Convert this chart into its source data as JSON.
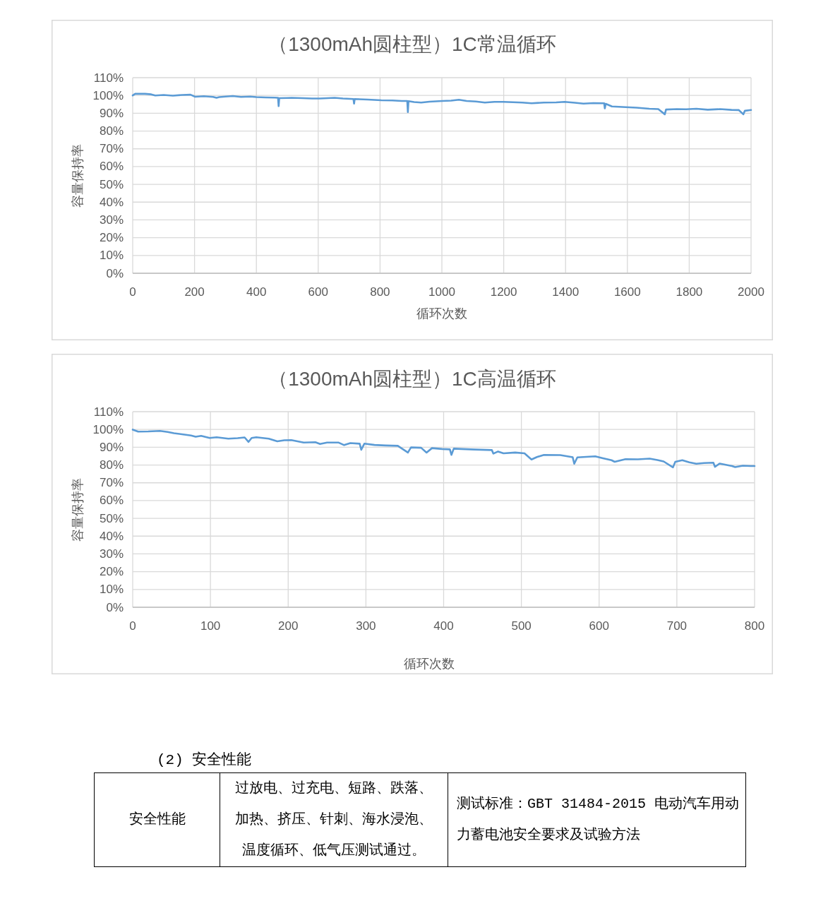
{
  "chart_data": [
    {
      "type": "line",
      "title": "（1300mAh圆柱型）1C常温循环",
      "xlabel": "循环次数",
      "ylabel": "容量保持率",
      "grid": true,
      "xlim": [
        0,
        2000
      ],
      "xticks": [
        0,
        200,
        400,
        600,
        800,
        1000,
        1200,
        1400,
        1600,
        1800,
        2000
      ],
      "ylim": [
        0,
        110
      ],
      "yticks": [
        {
          "value": 0,
          "label": "0%"
        },
        {
          "value": 10,
          "label": "10%"
        },
        {
          "value": 20,
          "label": "20%"
        },
        {
          "value": 30,
          "label": "30%"
        },
        {
          "value": 40,
          "label": "40%"
        },
        {
          "value": 50,
          "label": "50%"
        },
        {
          "value": 60,
          "label": "60%"
        },
        {
          "value": 70,
          "label": "70%"
        },
        {
          "value": 80,
          "label": "80%"
        },
        {
          "value": 90,
          "label": "90%"
        },
        {
          "value": 100,
          "label": "100%"
        },
        {
          "value": 110,
          "label": "110%"
        }
      ],
      "x": [
        0,
        8,
        40,
        60,
        73,
        100,
        130,
        160,
        187,
        202,
        230,
        260,
        271,
        280,
        300,
        324,
        350,
        380,
        400,
        430,
        460,
        470,
        472,
        474,
        500,
        514,
        550,
        580,
        605,
        630,
        653,
        680,
        714,
        716,
        718,
        760,
        804,
        840,
        870,
        888,
        890,
        892,
        910,
        933,
        960,
        1001,
        1030,
        1055,
        1080,
        1110,
        1139,
        1170,
        1199,
        1230,
        1260,
        1290,
        1330,
        1370,
        1397,
        1430,
        1458,
        1490,
        1525,
        1527,
        1530,
        1550,
        1595,
        1630,
        1671,
        1700,
        1721,
        1725,
        1760,
        1790,
        1823,
        1860,
        1900,
        1937,
        1960,
        1975,
        1980,
        2000
      ],
      "series": [
        {
          "color": "#5b9bd5",
          "values": [
            100.0,
            100.9,
            100.9,
            100.6,
            100.0,
            100.3,
            99.9,
            100.3,
            100.4,
            99.3,
            99.6,
            99.2,
            98.7,
            99.1,
            99.4,
            99.7,
            99.2,
            99.4,
            99.1,
            98.9,
            98.8,
            98.7,
            94.0,
            98.5,
            98.6,
            98.7,
            98.5,
            98.3,
            98.3,
            98.5,
            98.7,
            98.3,
            98.0,
            95.4,
            98.0,
            97.7,
            97.3,
            97.2,
            96.9,
            96.9,
            90.7,
            96.8,
            96.3,
            96.0,
            96.5,
            96.9,
            97.1,
            97.6,
            96.9,
            96.6,
            96.0,
            96.4,
            96.4,
            96.2,
            96.0,
            95.6,
            96.0,
            96.1,
            96.4,
            95.9,
            95.4,
            95.7,
            95.6,
            92.7,
            95.3,
            93.8,
            93.4,
            93.1,
            92.5,
            92.3,
            89.4,
            92.1,
            92.3,
            92.2,
            92.5,
            92.0,
            92.3,
            91.9,
            91.8,
            89.4,
            91.4,
            91.8
          ]
        }
      ]
    },
    {
      "type": "line",
      "title": "（1300mAh圆柱型）1C高温循环",
      "xlabel": "循环次数",
      "ylabel": "容量保持率",
      "grid": true,
      "xlim": [
        0,
        800
      ],
      "xticks": [
        0,
        100,
        200,
        300,
        400,
        500,
        600,
        700,
        800
      ],
      "ylim": [
        0,
        110
      ],
      "yticks": [
        {
          "value": 0,
          "label": "0%"
        },
        {
          "value": 10,
          "label": "10%"
        },
        {
          "value": 20,
          "label": "20%"
        },
        {
          "value": 30,
          "label": "30%"
        },
        {
          "value": 40,
          "label": "40%"
        },
        {
          "value": 50,
          "label": "50%"
        },
        {
          "value": 60,
          "label": "60%"
        },
        {
          "value": 70,
          "label": "70%"
        },
        {
          "value": 80,
          "label": "80%"
        },
        {
          "value": 90,
          "label": "90%"
        },
        {
          "value": 100,
          "label": "100%"
        },
        {
          "value": 110,
          "label": "110%"
        }
      ],
      "x": [
        0,
        7,
        20,
        35,
        45,
        53,
        65,
        75,
        81,
        88,
        99,
        108,
        123,
        135,
        144,
        149,
        153,
        159,
        175,
        186,
        195,
        204,
        220,
        235,
        241,
        250,
        265,
        272,
        280,
        292,
        294,
        298,
        311,
        325,
        341,
        354,
        358,
        371,
        378,
        385,
        398,
        408,
        410,
        413,
        423,
        440,
        462,
        464,
        470,
        477,
        492,
        504,
        513,
        520,
        529,
        550,
        566,
        568,
        572,
        595,
        605,
        616,
        620,
        634,
        650,
        665,
        675,
        683,
        695,
        698,
        707,
        716,
        725,
        735,
        747,
        749,
        755,
        771,
        775,
        785,
        795,
        800
      ],
      "series": [
        {
          "color": "#5b9bd5",
          "values": [
            99.9,
            98.8,
            98.9,
            99.2,
            98.6,
            97.9,
            97.2,
            96.6,
            95.9,
            96.4,
            95.2,
            95.6,
            94.8,
            95.1,
            95.5,
            93.0,
            95.2,
            95.6,
            94.8,
            93.3,
            93.9,
            94.0,
            92.6,
            92.8,
            91.8,
            92.6,
            92.6,
            91.2,
            92.3,
            92.0,
            88.6,
            92.0,
            91.3,
            91.0,
            90.8,
            87.0,
            89.9,
            89.7,
            87.0,
            89.5,
            89.0,
            88.8,
            85.7,
            89.2,
            89.0,
            88.7,
            88.4,
            86.4,
            87.6,
            86.6,
            87.0,
            86.6,
            83.1,
            84.5,
            85.7,
            85.6,
            84.4,
            80.7,
            84.3,
            84.9,
            83.8,
            82.7,
            81.8,
            83.3,
            83.2,
            83.6,
            82.8,
            82.0,
            78.7,
            81.8,
            82.7,
            81.5,
            80.7,
            81.1,
            81.3,
            79.0,
            80.8,
            79.4,
            78.8,
            79.6,
            79.4,
            79.4
          ]
        }
      ]
    },
    {
      "type": "other",
      "title": "(2) 安全性能",
      "annotations": [
        "安全性能",
        "过放电、过充电、短路、跌落、加热、挤压、针刺、海水浸泡、温度循环、低气压测试通过。",
        "测试标准：GBT 31484-2015 电动汽车用动力蓄电池安全要求及试验方法"
      ]
    }
  ]
}
